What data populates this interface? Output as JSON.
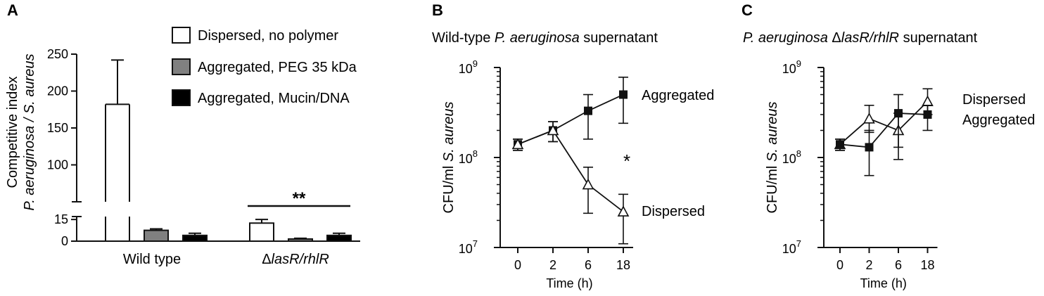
{
  "chart_data": [
    {
      "panel": "A",
      "type": "bar",
      "ylabel_line1": "Competitive index",
      "ylabel_line2": "P. aeruginosa / S. aureus",
      "y_break": true,
      "ylim_lower": [
        0,
        18
      ],
      "ylim_upper": [
        50,
        250
      ],
      "yticks_lower": [
        "0",
        "15"
      ],
      "yticks_upper": [
        "100",
        "150",
        "200",
        "250"
      ],
      "categories": [
        "Wild type",
        "ΔlasR/rhlR"
      ],
      "category_parts": [
        {
          "plain": "Wild type",
          "italic": ""
        },
        {
          "plain": "Δ",
          "italic": "lasR/rhlR"
        }
      ],
      "series": [
        {
          "name": "Dispersed, no polymer",
          "fill": "#ffffff",
          "values": [
            182,
            12.5
          ],
          "errors": [
            60,
            2.5
          ]
        },
        {
          "name": "Aggregated, PEG 35 kDa",
          "fill": "#808080",
          "values": [
            7.5,
            1.5
          ],
          "errors": [
            1.0,
            0.5
          ]
        },
        {
          "name": "Aggregated, Mucin/DNA",
          "fill": "#000000",
          "values": [
            4.0,
            4.0
          ],
          "errors": [
            1.5,
            1.5
          ]
        }
      ],
      "legend_position": "top-right",
      "significance": "**"
    },
    {
      "panel": "B",
      "type": "line",
      "title_parts": {
        "pre": "Wild-type ",
        "italic": "P. aeruginosa",
        "post": " supernatant"
      },
      "xlabel": "Time (h)",
      "ylabel_parts": {
        "pre": "CFU/ml ",
        "italic": "S. aureus"
      },
      "y_scale": "log",
      "ylim": [
        10000000,
        1000000000
      ],
      "ytick_exponents": [
        "7",
        "8",
        "9"
      ],
      "x": [
        "0",
        "2",
        "6",
        "18"
      ],
      "series": [
        {
          "name": "Aggregated",
          "marker": "filled-square",
          "values": [
            140000000,
            200000000,
            330000000,
            500000000
          ],
          "err_low": [
            120000000,
            150000000,
            160000000,
            240000000
          ],
          "err_high": [
            160000000,
            250000000,
            500000000,
            780000000
          ]
        },
        {
          "name": "Dispersed",
          "marker": "open-triangle",
          "values": [
            140000000,
            200000000,
            50000000,
            25000000
          ],
          "err_low": [
            120000000,
            150000000,
            24000000,
            11000000
          ],
          "err_high": [
            160000000,
            250000000,
            78000000,
            39000000
          ]
        }
      ],
      "annotation": "*"
    },
    {
      "panel": "C",
      "type": "line",
      "title_parts": {
        "pre": "",
        "italic": "P. aeruginosa",
        "mid": " Δ",
        "italic2": "lasR/rhlR",
        "post": " supernatant"
      },
      "xlabel": "Time (h)",
      "ylabel_parts": {
        "pre": "CFU/ml ",
        "italic": "S. aureus"
      },
      "y_scale": "log",
      "ylim": [
        10000000,
        1000000000
      ],
      "ytick_exponents": [
        "7",
        "8",
        "9"
      ],
      "x": [
        "0",
        "2",
        "6",
        "18"
      ],
      "series": [
        {
          "name": "Dispersed",
          "marker": "open-triangle",
          "values": [
            140000000,
            270000000,
            200000000,
            420000000
          ],
          "err_low": [
            120000000,
            190000000,
            130000000,
            300000000
          ],
          "err_high": [
            160000000,
            380000000,
            310000000,
            580000000
          ]
        },
        {
          "name": "Aggregated",
          "marker": "filled-square",
          "values": [
            140000000,
            130000000,
            310000000,
            300000000
          ],
          "err_low": [
            120000000,
            63000000,
            95000000,
            200000000
          ],
          "err_high": [
            160000000,
            200000000,
            500000000,
            380000000
          ]
        }
      ]
    }
  ]
}
